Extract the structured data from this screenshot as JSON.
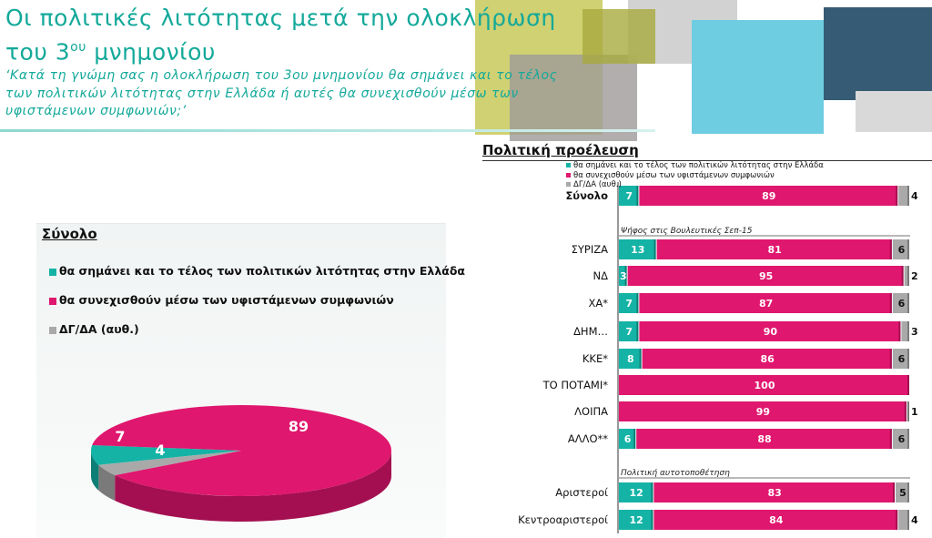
{
  "header": {
    "title_line1": "Οι πολιτικές λιτότητας μετά την ολοκλήρωση",
    "title_line2_pre": "του 3",
    "title_sup": "ου",
    "title_line2_post": " μνημονίου",
    "question": "‘Κατά τη γνώμη σας η ολοκλήρωση του 3ου μνημονίου θα σημάνει και το τέλος των πολιτικών λιτότητας στην Ελλάδα ή αυτές θα συνεχισθούν μέσω των υφιστάμενων συμφωνιών;’"
  },
  "colors": {
    "teal": "#14b3a6",
    "magenta": "#e0176e",
    "grey": "#a9a9a9"
  },
  "left": {
    "heading": "Σύνολο",
    "legend": [
      {
        "label": "θα σημάνει και το τέλος των πολιτικών λιτότητας στην Ελλάδα",
        "color": "#14b3a6"
      },
      {
        "label": "θα συνεχισθούν μέσω των υφιστάμενων συμφωνιών",
        "color": "#e0176e"
      },
      {
        "label": "ΔΓ/ΔΑ (αυθ.)",
        "color": "#a9a9a9"
      }
    ]
  },
  "right": {
    "heading": "Πολιτική προέλευση",
    "legend": [
      {
        "label": "θα σημάνει και το τέλος των πολιτικών λιτότητας στην Ελλάδα",
        "color": "#14b3a6"
      },
      {
        "label": "θα συνεχισθούν μέσω των υφιστάμενων συμφωνιών",
        "color": "#e0176e"
      },
      {
        "label": "ΔΓ/ΔΑ (αυθ.)",
        "color": "#a9a9a9"
      }
    ],
    "section1": "Ψήφος στις Βουλευτικές Σεπ-15",
    "section2": "Πολιτική αυτοτοποθέτηση"
  },
  "chart_data": [
    {
      "type": "pie",
      "labels": [
        "θα σημάνει και το τέλος των πολιτικών λιτότητας στην Ελλάδα",
        "θα συνεχισθούν μέσω των υφιστάμενων συμφωνιών",
        "ΔΓ/ΔΑ (αυθ.)"
      ],
      "values": [
        7,
        89,
        4
      ]
    },
    {
      "type": "bar",
      "stacked": true,
      "orientation": "horizontal",
      "xlim": [
        0,
        100
      ],
      "categories": [
        "Σύνολο",
        "ΣΥΡΙΖΑ",
        "ΝΔ",
        "ΧΑ*",
        "ΔΗΜ…",
        "ΚΚΕ*",
        "ΤΟ ΠΟΤΑΜΙ*",
        "ΛΟΙΠΑ",
        "ΑΛΛΟ**",
        "Αριστεροί",
        "Κεντροαριστεροί"
      ],
      "series": [
        {
          "name": "θα σημάνει και το τέλος των πολιτικών λιτότητας στην Ελλάδα",
          "values": [
            7,
            13,
            3,
            7,
            7,
            8,
            0,
            0,
            6,
            12,
            12
          ]
        },
        {
          "name": "θα συνεχισθούν μέσω των υφιστάμενων συμφωνιών",
          "values": [
            89,
            81,
            95,
            87,
            90,
            86,
            100,
            99,
            88,
            83,
            84
          ]
        },
        {
          "name": "ΔΓ/ΔΑ (αυθ.)",
          "values": [
            4,
            6,
            2,
            6,
            3,
            6,
            0,
            1,
            6,
            5,
            4
          ]
        }
      ]
    }
  ]
}
